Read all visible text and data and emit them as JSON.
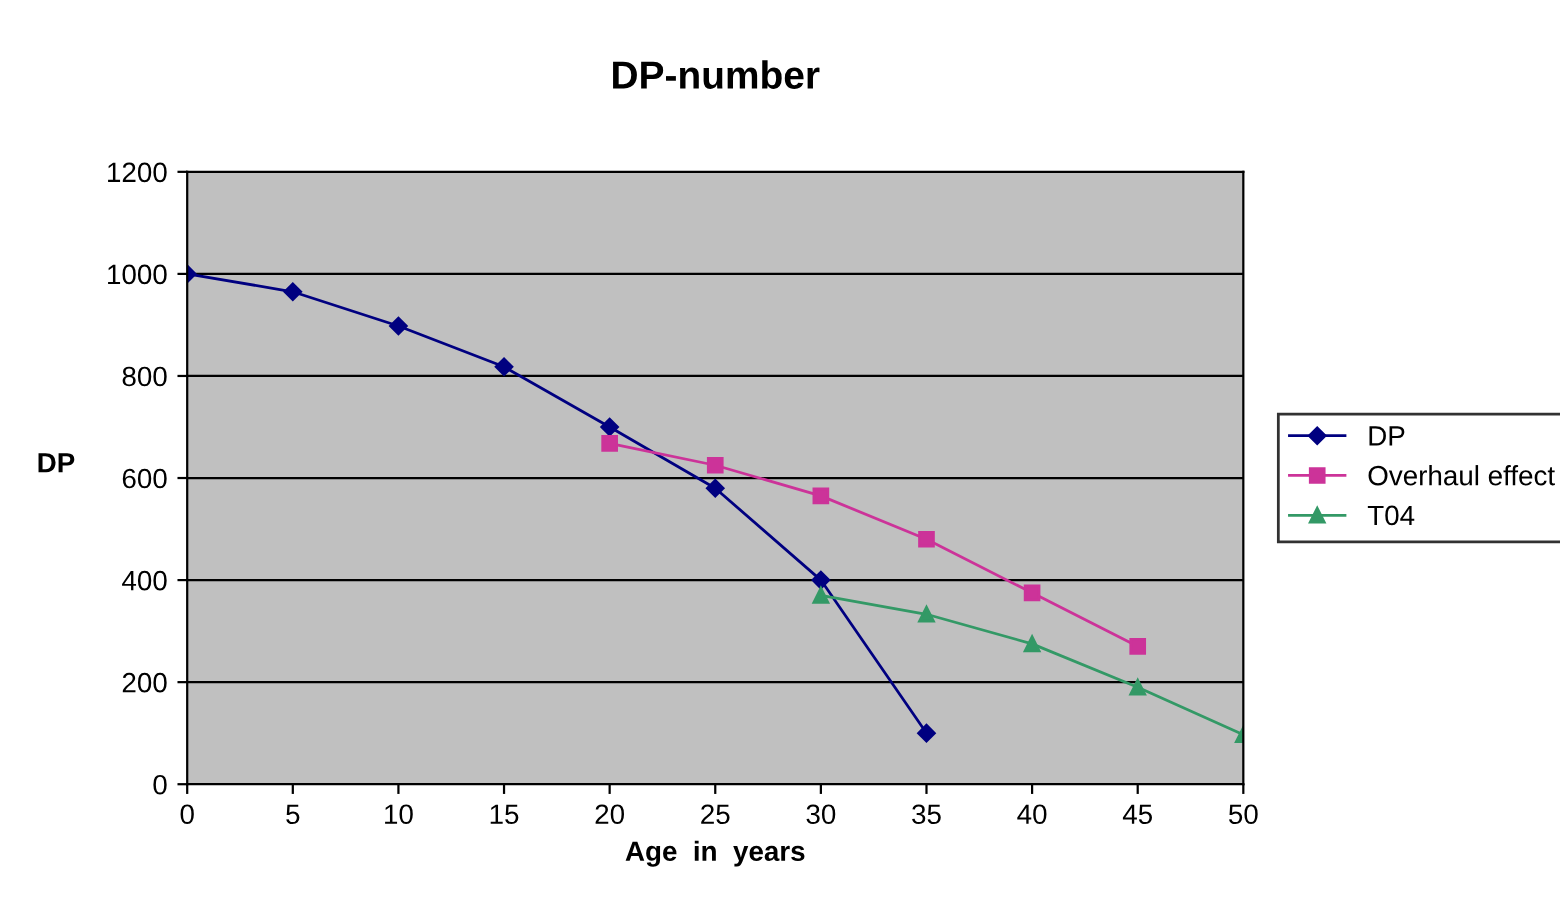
{
  "chart_data": {
    "type": "line",
    "title": "DP-number",
    "xlabel": "Age  in  years",
    "ylabel": "DP",
    "xlim": [
      0,
      50
    ],
    "xticks": [
      0,
      5,
      10,
      15,
      20,
      25,
      30,
      35,
      40,
      45,
      50
    ],
    "ylim": [
      0,
      1200
    ],
    "yticks": [
      0,
      200,
      400,
      600,
      800,
      1000,
      1200
    ],
    "grid": "y",
    "legend": "right",
    "series": [
      {
        "name": "DP",
        "color": "#000080",
        "marker": "diamond",
        "x": [
          0,
          5,
          10,
          15,
          20,
          25,
          30,
          35
        ],
        "values": [
          1000,
          965,
          898,
          818,
          700,
          580,
          400,
          100
        ]
      },
      {
        "name": "Overhaul effect",
        "color": "#cc3399",
        "marker": "square",
        "x": [
          20,
          25,
          30,
          35,
          40,
          45
        ],
        "values": [
          668,
          625,
          565,
          480,
          375,
          270
        ]
      },
      {
        "name": "T04",
        "color": "#339966",
        "marker": "triangle",
        "x": [
          30,
          35,
          40,
          45,
          50
        ],
        "values": [
          370,
          333,
          275,
          190,
          97
        ]
      }
    ]
  }
}
